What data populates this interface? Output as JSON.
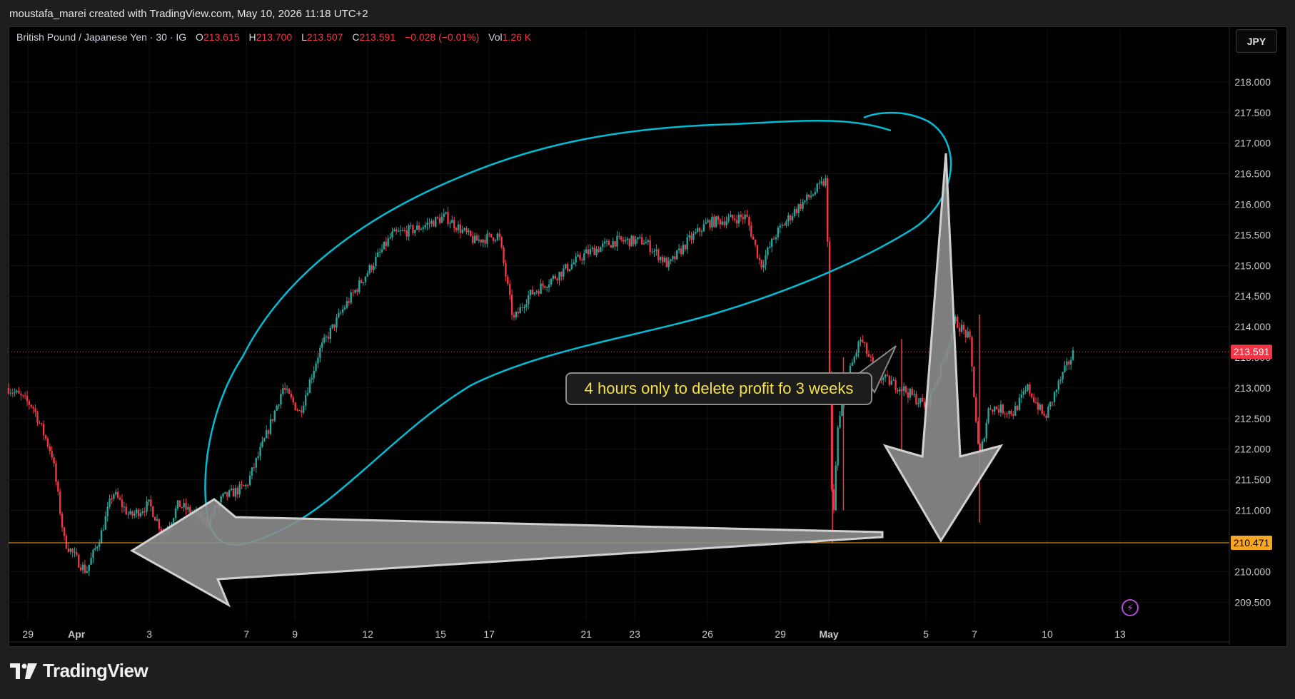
{
  "header": {
    "title": "moustafa_marei created with TradingView.com, May 10, 2026 11:18 UTC+2"
  },
  "legend": {
    "symbol": "British Pound / Japanese Yen · 30 · IG",
    "o_label": "O",
    "o_value": "213.615",
    "h_label": "H",
    "h_value": "213.700",
    "l_label": "L",
    "l_value": "213.507",
    "c_label": "C",
    "c_value": "213.591",
    "change": "−0.028 (−0.01%)",
    "vol_label": "Vol",
    "vol_value": "1.26 K"
  },
  "currency": "JPY",
  "annotation": "4 hours only to delete profit fo 3 weeks",
  "footer": {
    "brand": "TradingView"
  },
  "colors": {
    "up": "#26a69a",
    "down": "#f23645",
    "outline": "#00bcd4",
    "support": "#f5a623",
    "arrow_fill": "#8c8c8c"
  },
  "chart_data": {
    "type": "candlestick",
    "title": "British Pound / Japanese Yen · 30 · IG",
    "y_ticks": [
      "209.500",
      "210.000",
      "210.500",
      "211.000",
      "211.500",
      "212.000",
      "212.500",
      "213.000",
      "213.500",
      "214.000",
      "214.500",
      "215.000",
      "215.500",
      "216.000",
      "216.500",
      "217.000",
      "217.500",
      "218.000"
    ],
    "ylim": [
      209.2,
      218.5
    ],
    "x_ticks": [
      {
        "label": "29",
        "day": 0
      },
      {
        "label": "Apr",
        "day": 2
      },
      {
        "label": "3",
        "day": 5
      },
      {
        "label": "7",
        "day": 9
      },
      {
        "label": "9",
        "day": 11
      },
      {
        "label": "12",
        "day": 14
      },
      {
        "label": "15",
        "day": 17
      },
      {
        "label": "17",
        "day": 19
      },
      {
        "label": "21",
        "day": 23
      },
      {
        "label": "23",
        "day": 25
      },
      {
        "label": "26",
        "day": 28
      },
      {
        "label": "29",
        "day": 31
      },
      {
        "label": "May",
        "day": 33
      },
      {
        "label": "5",
        "day": 37
      },
      {
        "label": "7",
        "day": 39
      },
      {
        "label": "10",
        "day": 42
      },
      {
        "label": "13",
        "day": 45
      }
    ],
    "xlim": [
      -0.8,
      49.5
    ],
    "last_price": "213.591",
    "support_price": "210.471",
    "path": [
      [
        -0.8,
        213.0
      ],
      [
        0.2,
        212.7
      ],
      [
        1.0,
        211.9
      ],
      [
        1.5,
        210.5
      ],
      [
        2.0,
        210.2
      ],
      [
        2.4,
        210.0
      ],
      [
        3.0,
        210.6
      ],
      [
        3.5,
        211.3
      ],
      [
        4.2,
        210.9
      ],
      [
        5.0,
        211.1
      ],
      [
        5.6,
        210.6
      ],
      [
        6.2,
        211.1
      ],
      [
        7.4,
        210.8
      ],
      [
        8.0,
        211.2
      ],
      [
        9.0,
        211.4
      ],
      [
        9.8,
        212.2
      ],
      [
        10.5,
        213.0
      ],
      [
        11.2,
        212.6
      ],
      [
        12.0,
        213.6
      ],
      [
        13.0,
        214.3
      ],
      [
        14.0,
        214.9
      ],
      [
        15.0,
        215.5
      ],
      [
        16.0,
        215.6
      ],
      [
        17.2,
        215.8
      ],
      [
        18.4,
        215.4
      ],
      [
        19.4,
        215.5
      ],
      [
        20.0,
        214.1
      ],
      [
        20.6,
        214.5
      ],
      [
        22.0,
        214.9
      ],
      [
        23.0,
        215.2
      ],
      [
        24.2,
        215.4
      ],
      [
        25.4,
        215.4
      ],
      [
        26.4,
        215.0
      ],
      [
        27.2,
        215.4
      ],
      [
        28.0,
        215.7
      ],
      [
        29.6,
        215.8
      ],
      [
        30.2,
        215.0
      ],
      [
        30.8,
        215.5
      ],
      [
        31.6,
        215.9
      ],
      [
        32.4,
        216.2
      ],
      [
        32.9,
        216.4
      ],
      [
        33.15,
        210.5
      ],
      [
        33.35,
        212.3
      ],
      [
        33.8,
        213.2
      ],
      [
        34.3,
        213.8
      ],
      [
        35.0,
        213.2
      ],
      [
        36.0,
        213.0
      ],
      [
        37.0,
        212.7
      ],
      [
        37.6,
        213.3
      ],
      [
        38.2,
        214.1
      ],
      [
        38.8,
        213.8
      ],
      [
        39.2,
        211.8
      ],
      [
        39.6,
        212.7
      ],
      [
        40.6,
        212.6
      ],
      [
        41.2,
        213.0
      ],
      [
        41.9,
        212.5
      ],
      [
        42.5,
        213.1
      ],
      [
        43.1,
        213.591
      ]
    ],
    "spikes": [
      {
        "day": 33.15,
        "low": 210.471,
        "high": 213.0
      },
      {
        "day": 36.0,
        "low": 212.0,
        "high": 213.8
      },
      {
        "day": 39.2,
        "low": 210.8,
        "high": 214.2
      },
      {
        "day": 33.6,
        "low": 211.0,
        "high": 213.5
      }
    ],
    "annotations": [
      "4 hours only to delete profit fo 3 weeks"
    ]
  }
}
